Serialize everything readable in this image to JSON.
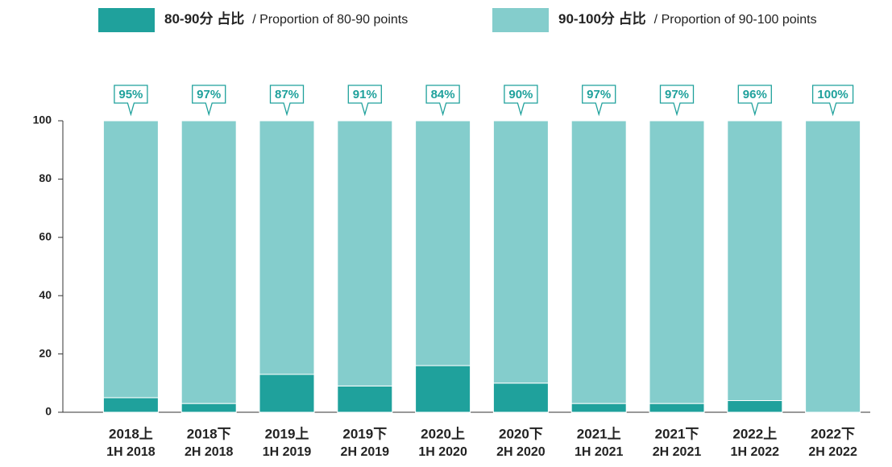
{
  "chart_data": {
    "type": "stacked_bar",
    "categories": [
      [
        "2018上",
        "1H 2018"
      ],
      [
        "2018下",
        "2H 2018"
      ],
      [
        "2019上",
        "1H 2019"
      ],
      [
        "2019下",
        "2H 2019"
      ],
      [
        "2020上",
        "1H 2020"
      ],
      [
        "2020下",
        "2H 2020"
      ],
      [
        "2021上",
        "1H 2021"
      ],
      [
        "2021下",
        "2H 2021"
      ],
      [
        "2022上",
        "1H 2022"
      ],
      [
        "2022下",
        "2H 2022"
      ]
    ],
    "series": [
      {
        "name": "80-90分 占比",
        "name_en": "/ Proportion of 80-90 points",
        "color": "#1fa19c",
        "values": [
          5,
          3,
          13,
          9,
          16,
          10,
          3,
          3,
          4,
          0
        ],
        "value_labels": [
          "5%",
          "3%",
          "13%",
          "9%",
          "16%",
          "10%",
          "3%",
          "3%",
          "4%",
          null
        ]
      },
      {
        "name": "90-100分 占比",
        "name_en": "/ Proportion of 90-100 points",
        "color": "#84cdcc",
        "values": [
          95,
          97,
          87,
          91,
          84,
          90,
          97,
          97,
          96,
          100
        ],
        "value_labels": [
          "95%",
          "97%",
          "87%",
          "91%",
          "84%",
          "90%",
          "97%",
          "97%",
          "96%",
          "100%"
        ]
      }
    ],
    "ylim": [
      0,
      100
    ],
    "yticks": [
      0,
      20,
      40,
      60,
      80,
      100
    ],
    "grid": false
  }
}
